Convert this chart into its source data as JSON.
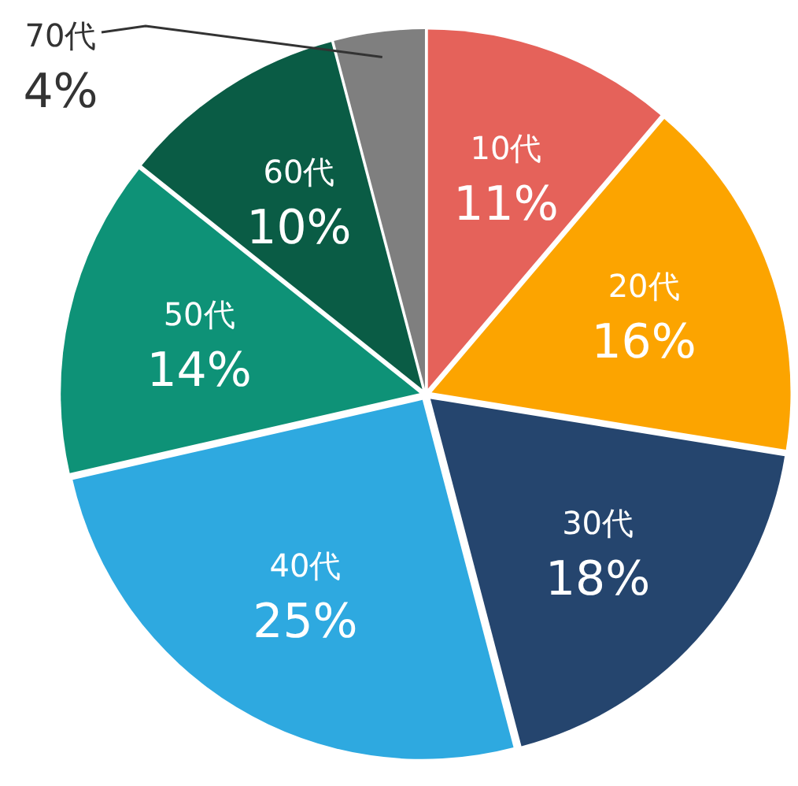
{
  "chart_data": {
    "type": "pie",
    "categories": [
      "10代",
      "20代",
      "30代",
      "40代",
      "50代",
      "60代",
      "70代"
    ],
    "values": [
      11,
      16,
      18,
      25,
      14,
      10,
      4
    ],
    "value_labels": [
      "11%",
      "16%",
      "18%",
      "25%",
      "14%",
      "10%",
      "4%"
    ],
    "colors": [
      "#e5625a",
      "#fca400",
      "#25456e",
      "#2ea9e0",
      "#0e9277",
      "#0a5c45",
      "#7f7f7f"
    ]
  }
}
